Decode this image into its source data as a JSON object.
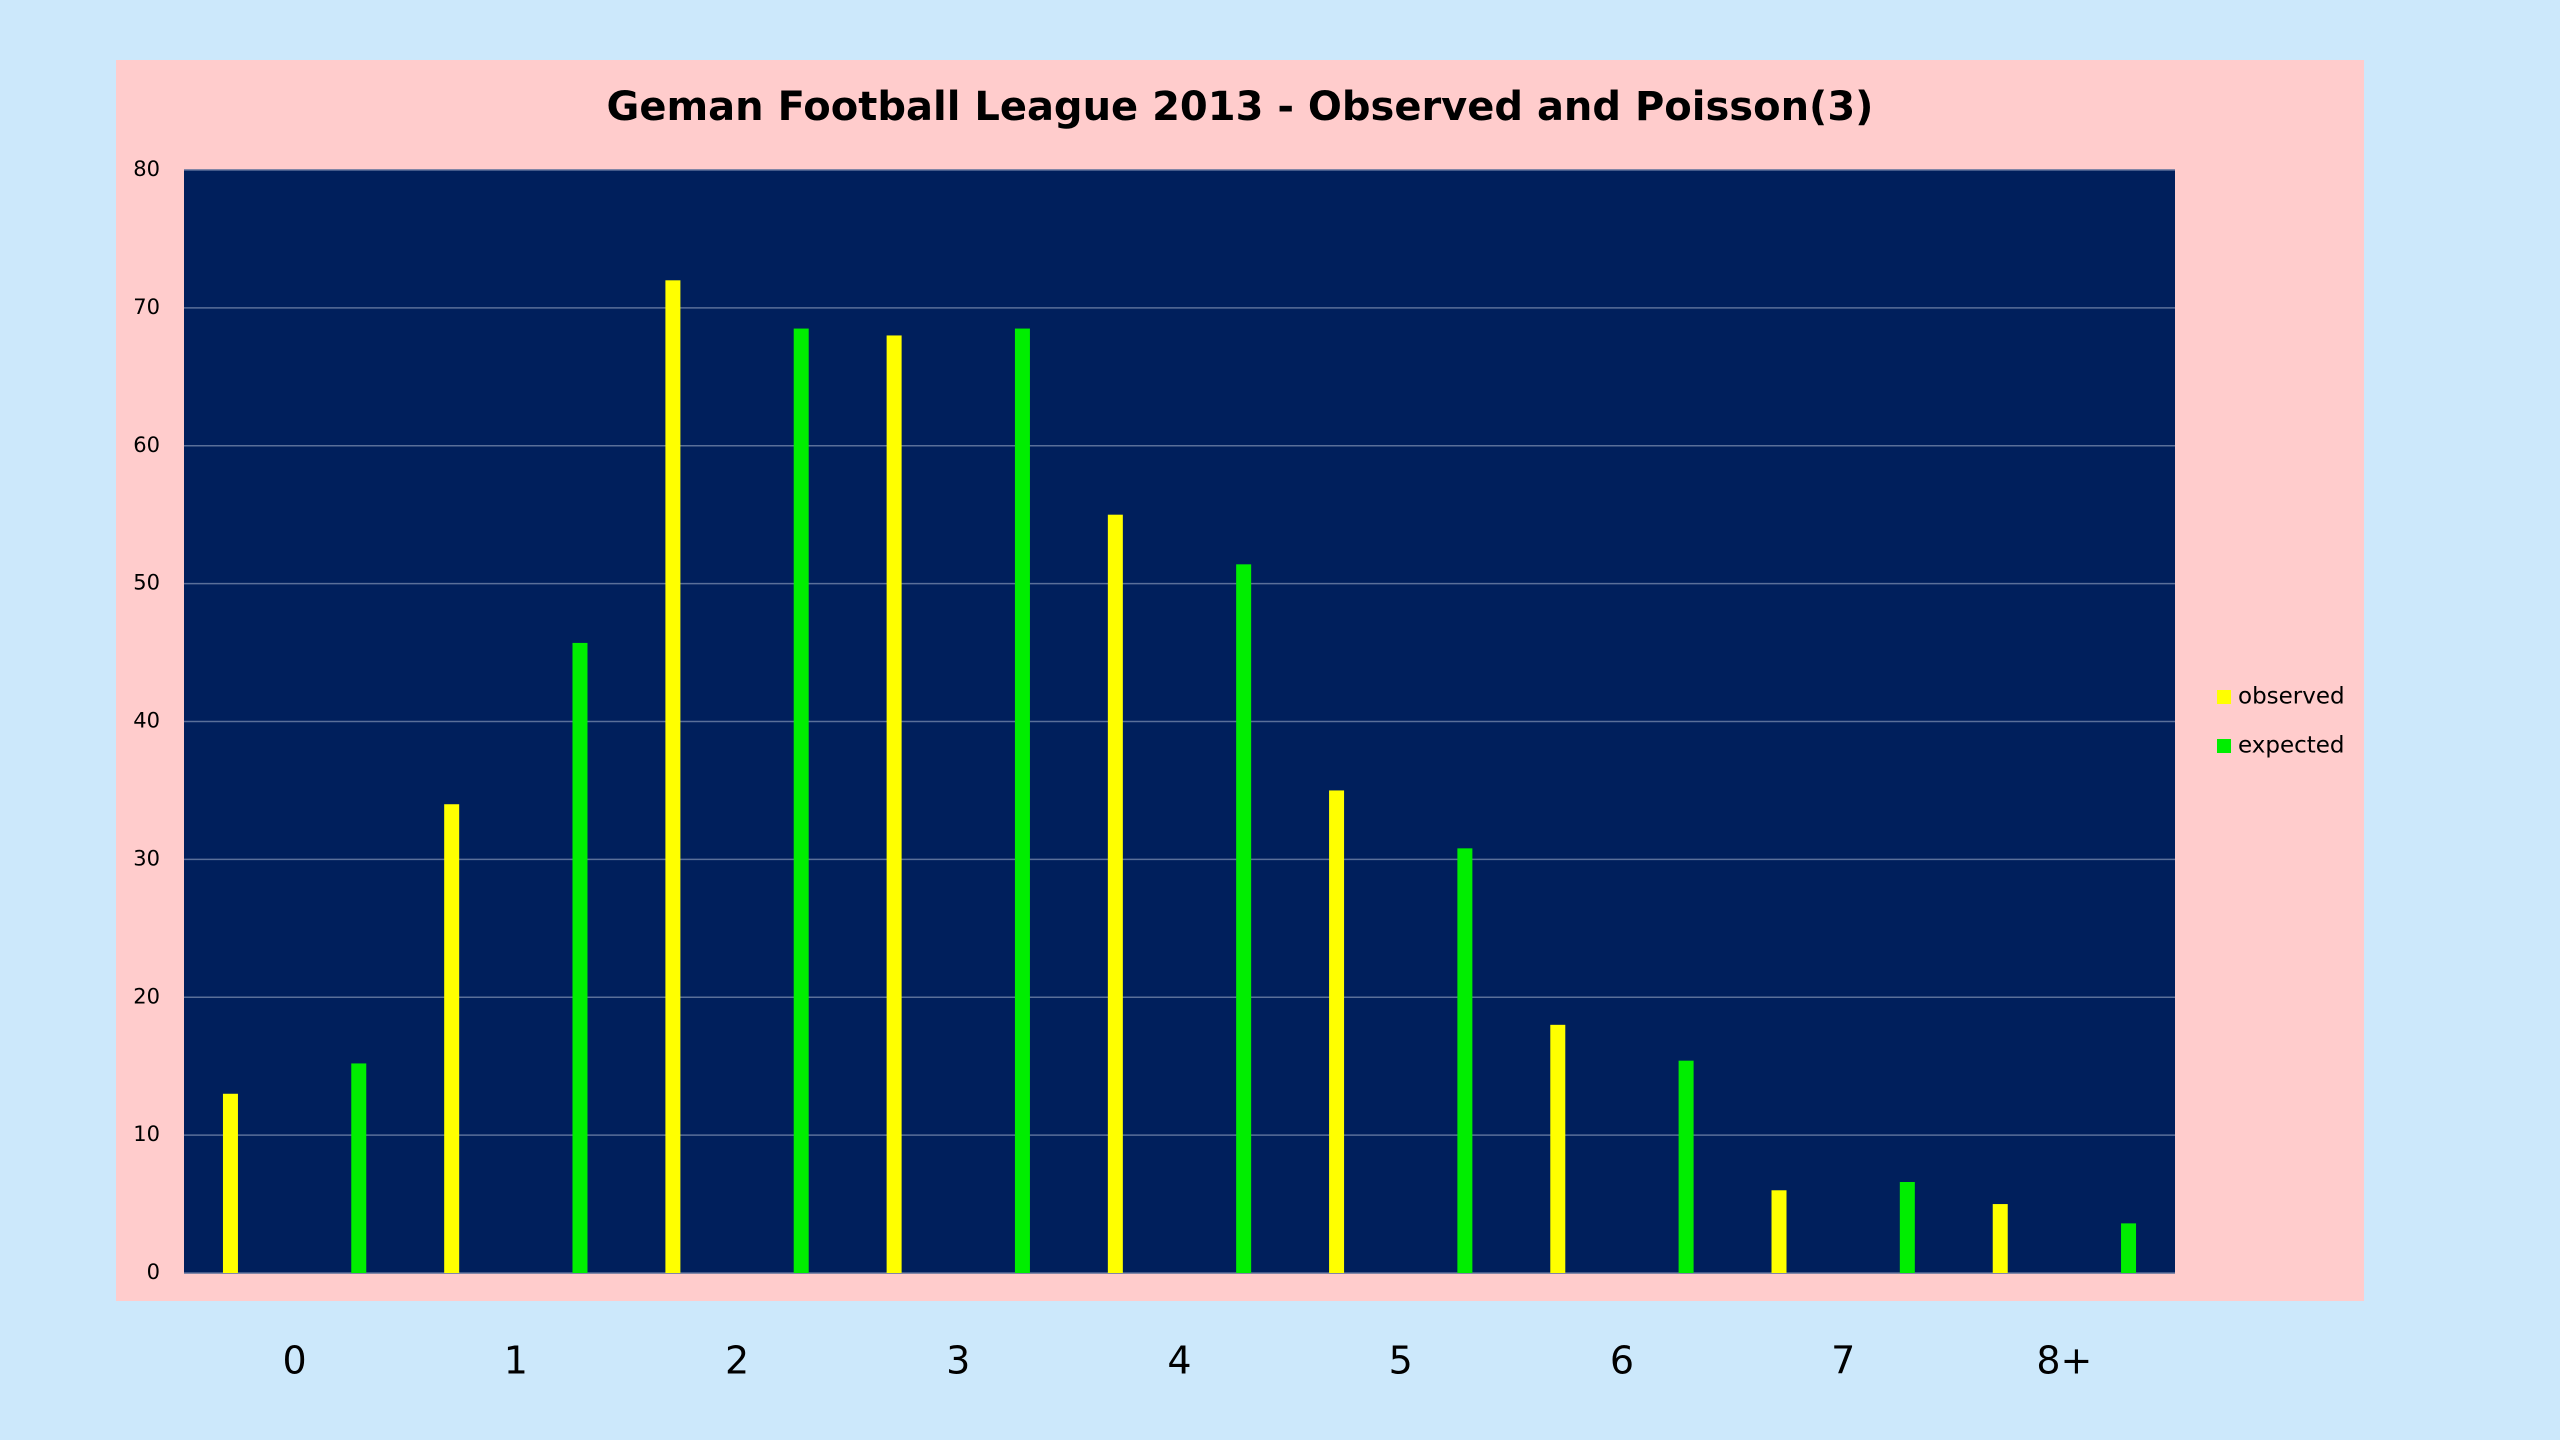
{
  "chart_data": {
    "type": "bar",
    "title": "Geman Football League 2013 - Observed and Poisson(3)",
    "categories": [
      "0",
      "1",
      "2",
      "3",
      "4",
      "5",
      "6",
      "7",
      "8+"
    ],
    "series": [
      {
        "name": "observed",
        "color": "#ffff00",
        "values": [
          13,
          34,
          72,
          68,
          55,
          35,
          18,
          6,
          5
        ]
      },
      {
        "name": "expected",
        "color": "#00ee00",
        "values": [
          15.2,
          45.7,
          68.5,
          68.5,
          51.4,
          30.8,
          15.4,
          6.6,
          3.6
        ]
      }
    ],
    "ylim": [
      0,
      80
    ],
    "yticks": [
      0,
      10,
      20,
      30,
      40,
      50,
      60,
      70,
      80
    ],
    "grid": true,
    "legend": "right"
  }
}
